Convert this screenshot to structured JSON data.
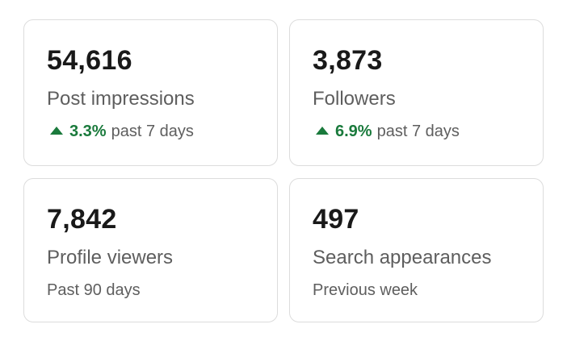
{
  "cards": [
    {
      "value": "54,616",
      "label": "Post impressions",
      "change": "3.3%",
      "change_period": "past 7 days"
    },
    {
      "value": "3,873",
      "label": "Followers",
      "change": "6.9%",
      "change_period": "past 7 days"
    },
    {
      "value": "7,842",
      "label": "Profile viewers",
      "subtitle": "Past 90 days"
    },
    {
      "value": "497",
      "label": "Search appearances",
      "subtitle": "Previous week"
    }
  ],
  "colors": {
    "positive": "#1a7a3c",
    "border": "#dcdcdc",
    "muted_text": "#5e5e5e",
    "primary_text": "#191919"
  },
  "icons": {
    "trend_up": "triangle-up-icon"
  }
}
